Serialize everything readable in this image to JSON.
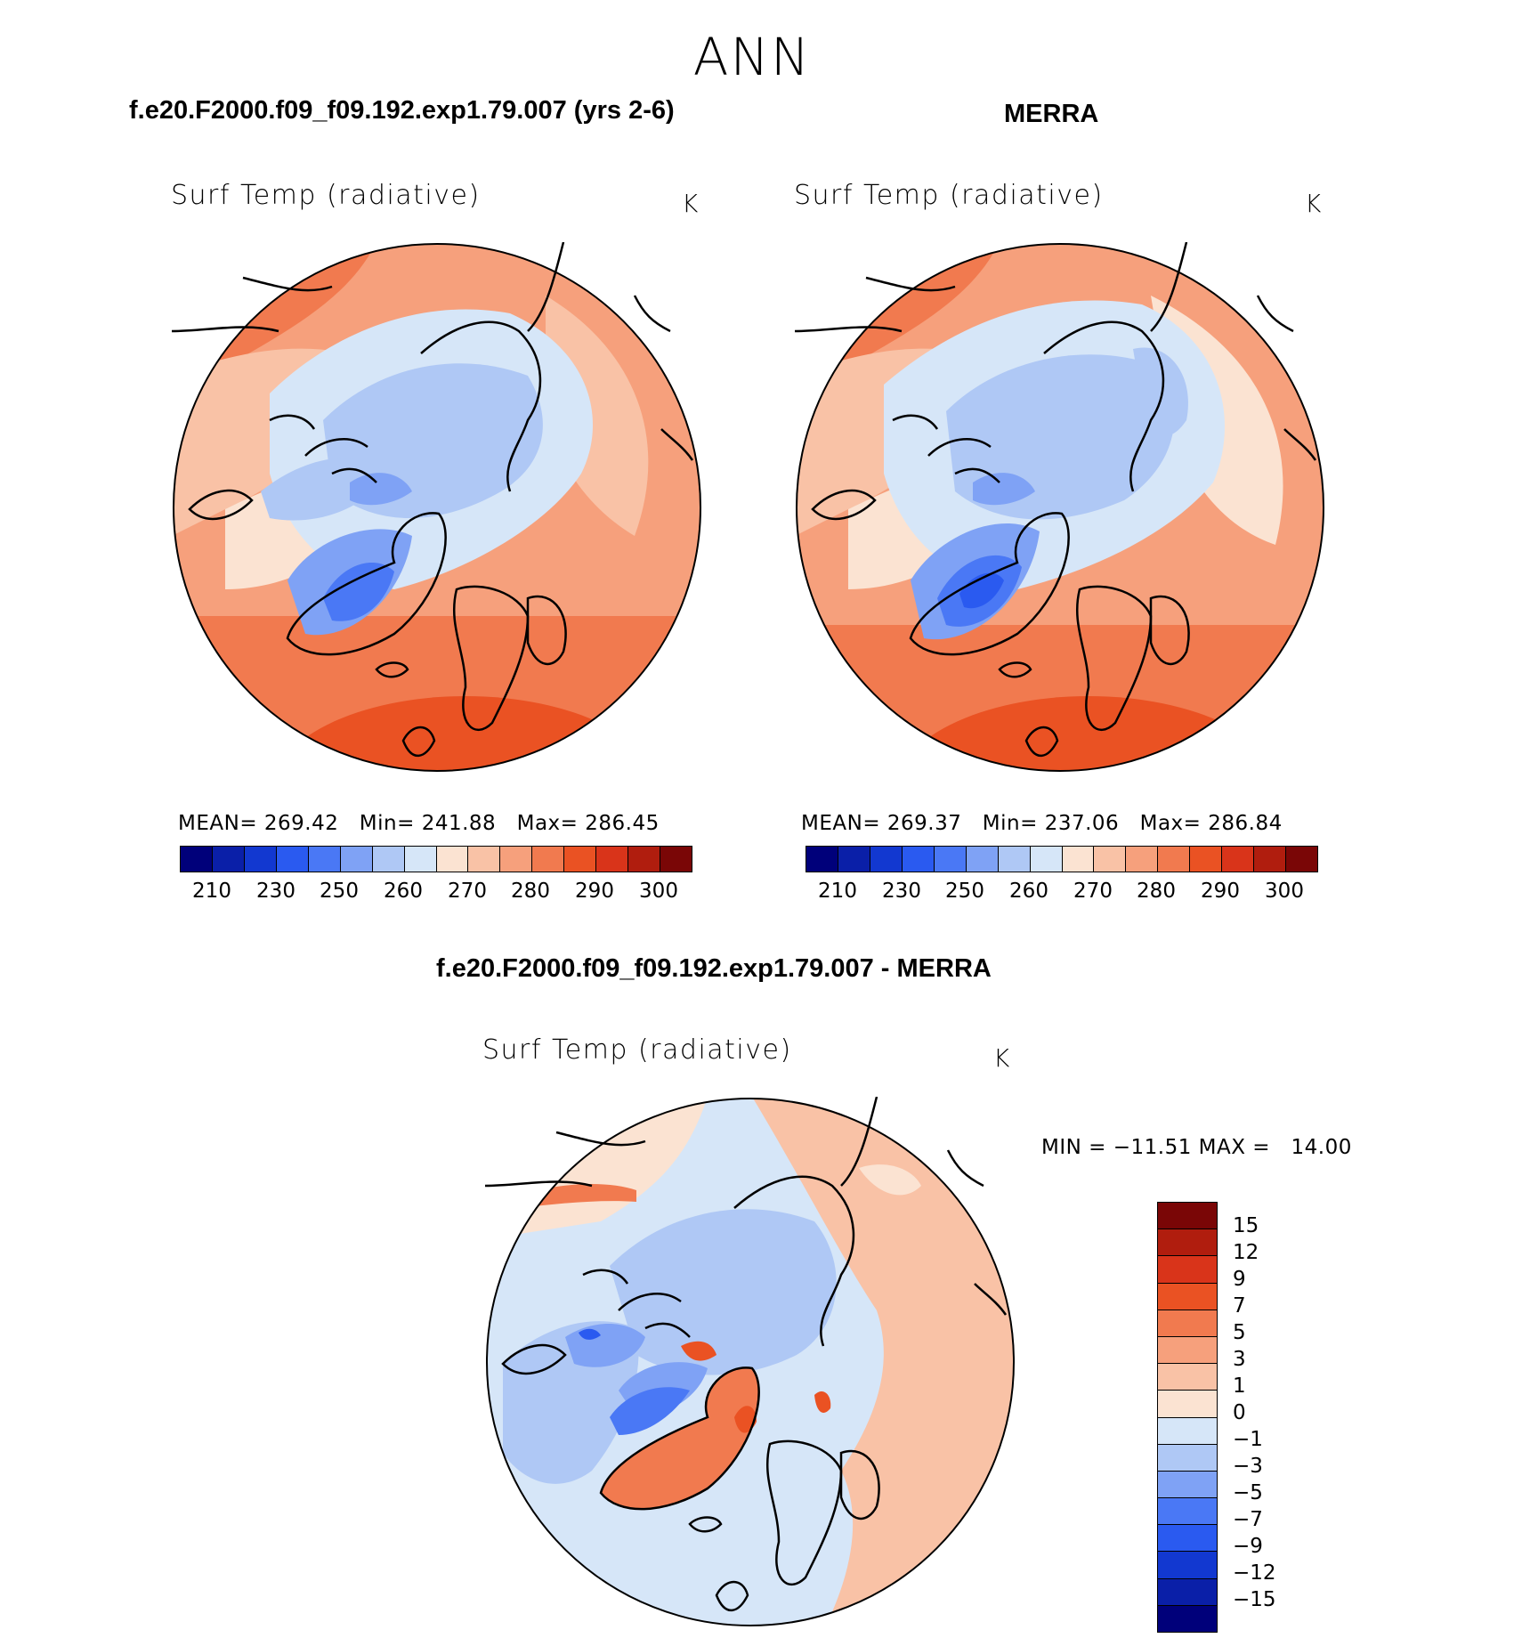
{
  "super_title": "ANN",
  "panels": {
    "model": {
      "case_title": "f.e20.F2000.f09_f09.192.exp1.79.007 (yrs 2-6)",
      "variable": "Surf Temp (radiative)",
      "units": "K",
      "stats": "MEAN= 269.42   Min= 241.88   Max= 286.45",
      "colorbar_ticks": [
        "210",
        "230",
        "250",
        "260",
        "270",
        "280",
        "290",
        "300"
      ]
    },
    "obs": {
      "case_title": "MERRA",
      "variable": "Surf Temp (radiative)",
      "units": "K",
      "stats": "MEAN= 269.37   Min= 237.06   Max= 286.84",
      "colorbar_ticks": [
        "210",
        "230",
        "250",
        "260",
        "270",
        "280",
        "290",
        "300"
      ]
    },
    "diff": {
      "case_title": "f.e20.F2000.f09_f09.192.exp1.79.007 - MERRA",
      "variable": "Surf Temp (radiative)",
      "units": "K",
      "stats": "MIN = −11.51 MAX =   14.00",
      "colorbar_ticks": [
        "15",
        "12",
        "9",
        "7",
        "5",
        "3",
        "1",
        "0",
        "−1",
        "−3",
        "−5",
        "−7",
        "−9",
        "−12",
        "−15"
      ]
    }
  },
  "colors": {
    "abs_scale": [
      "#00007a",
      "#0a1fa8",
      "#1238d0",
      "#2a5af0",
      "#4a78f5",
      "#7fa2f5",
      "#afc8f5",
      "#d6e6f8",
      "#fbe3d2",
      "#f9c2a6",
      "#f6a07c",
      "#f17a4f",
      "#ea5223",
      "#d9341a",
      "#b01d0e",
      "#7a0606"
    ],
    "diff_scale": [
      "#7a0606",
      "#b01d0e",
      "#d9341a",
      "#ea5223",
      "#f17a4f",
      "#f6a07c",
      "#f9c2a6",
      "#fbe3d2",
      "#d6e6f8",
      "#afc8f5",
      "#7fa2f5",
      "#4a78f5",
      "#2a5af0",
      "#1238d0",
      "#0a1fa8",
      "#00007a"
    ]
  }
}
